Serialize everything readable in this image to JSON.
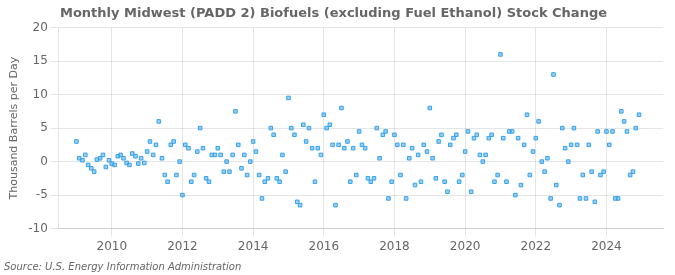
{
  "chart_data": {
    "type": "scatter",
    "title": "Monthly Midwest (PADD 2) Biofuels (excluding Fuel Ethanol) Stock Change",
    "ylabel": "Thousand Barrels per Day",
    "annotation": "Source: U.S. Energy Information Administration",
    "marker": "square",
    "grid": true,
    "xlim": [
      2008.5,
      2025.6
    ],
    "xticks": [
      2010,
      2012,
      2014,
      2016,
      2018,
      2020,
      2022,
      2024
    ],
    "ylim": [
      -10,
      20
    ],
    "yticks": [
      -10,
      -5,
      0,
      5,
      10,
      15,
      20
    ],
    "x": [
      2009,
      2009.08,
      2009.17,
      2009.25,
      2009.33,
      2009.42,
      2009.5,
      2009.58,
      2009.67,
      2009.75,
      2009.83,
      2009.92,
      2010,
      2010.08,
      2010.17,
      2010.25,
      2010.33,
      2010.42,
      2010.5,
      2010.58,
      2010.67,
      2010.75,
      2010.83,
      2010.92,
      2011,
      2011.08,
      2011.17,
      2011.25,
      2011.33,
      2011.42,
      2011.5,
      2011.58,
      2011.67,
      2011.75,
      2011.83,
      2011.92,
      2012,
      2012.08,
      2012.17,
      2012.25,
      2012.33,
      2012.42,
      2012.5,
      2012.58,
      2012.67,
      2012.75,
      2012.83,
      2012.92,
      2013,
      2013.08,
      2013.17,
      2013.25,
      2013.33,
      2013.42,
      2013.5,
      2013.58,
      2013.67,
      2013.75,
      2013.83,
      2013.92,
      2014,
      2014.08,
      2014.17,
      2014.25,
      2014.33,
      2014.42,
      2014.5,
      2014.58,
      2014.67,
      2014.75,
      2014.83,
      2014.92,
      2015,
      2015.08,
      2015.17,
      2015.25,
      2015.33,
      2015.42,
      2015.5,
      2015.58,
      2015.67,
      2015.75,
      2015.83,
      2015.92,
      2016,
      2016.08,
      2016.17,
      2016.25,
      2016.33,
      2016.42,
      2016.5,
      2016.58,
      2016.67,
      2016.75,
      2016.83,
      2016.92,
      2017,
      2017.08,
      2017.17,
      2017.25,
      2017.33,
      2017.42,
      2017.5,
      2017.58,
      2017.67,
      2017.75,
      2017.83,
      2017.92,
      2018,
      2018.08,
      2018.17,
      2018.25,
      2018.33,
      2018.42,
      2018.5,
      2018.58,
      2018.67,
      2018.75,
      2018.83,
      2018.92,
      2019,
      2019.08,
      2019.17,
      2019.25,
      2019.33,
      2019.42,
      2019.5,
      2019.58,
      2019.67,
      2019.75,
      2019.83,
      2019.92,
      2020,
      2020.08,
      2020.17,
      2020.25,
      2020.33,
      2020.42,
      2020.5,
      2020.58,
      2020.67,
      2020.75,
      2020.83,
      2020.92,
      2021,
      2021.08,
      2021.17,
      2021.25,
      2021.33,
      2021.42,
      2021.5,
      2021.58,
      2021.67,
      2021.75,
      2021.83,
      2021.92,
      2022,
      2022.08,
      2022.17,
      2022.25,
      2022.33,
      2022.42,
      2022.5,
      2022.58,
      2022.67,
      2022.75,
      2022.83,
      2022.92,
      2023,
      2023.08,
      2023.17,
      2023.25,
      2023.33,
      2023.42,
      2023.5,
      2023.58,
      2023.67,
      2023.75,
      2023.83,
      2023.92,
      2024,
      2024.08,
      2024.17,
      2024.25,
      2024.33,
      2024.42,
      2024.5,
      2024.58,
      2024.67,
      2024.75,
      2024.83,
      2024.92
    ],
    "values": [
      3.0,
      0.5,
      0.2,
      1.0,
      -0.5,
      -1.0,
      -1.5,
      0.3,
      0.5,
      1.0,
      -0.8,
      0.2,
      -0.3,
      -0.5,
      0.8,
      1.0,
      0.5,
      -0.2,
      -0.5,
      1.2,
      0.8,
      -0.3,
      0.5,
      -0.2,
      1.5,
      3.0,
      1.0,
      2.5,
      6.0,
      0.5,
      -2.0,
      -3.0,
      2.5,
      3.0,
      -2.0,
      0.0,
      -5.0,
      2.5,
      2.0,
      -3.0,
      -2.0,
      1.5,
      5.0,
      2.0,
      -2.5,
      -3.0,
      1.0,
      1.0,
      2.0,
      1.0,
      -1.5,
      0.0,
      -1.5,
      1.0,
      7.5,
      2.5,
      -1.0,
      1.0,
      -2.0,
      0.0,
      3.0,
      1.5,
      -2.0,
      -5.5,
      -3.0,
      -2.5,
      5.0,
      4.0,
      -2.5,
      -3.0,
      1.0,
      -1.5,
      9.5,
      5.0,
      4.0,
      -6.0,
      -6.5,
      5.5,
      3.0,
      5.0,
      2.0,
      -3.0,
      2.0,
      1.0,
      7.0,
      5.0,
      5.5,
      2.5,
      -6.5,
      2.5,
      8.0,
      2.0,
      3.0,
      -3.0,
      2.0,
      -2.0,
      4.5,
      2.5,
      2.0,
      -2.5,
      -3.0,
      -2.5,
      5.0,
      0.5,
      4.0,
      4.5,
      -5.5,
      -3.0,
      4.0,
      2.5,
      -2.0,
      2.5,
      -5.5,
      0.5,
      2.0,
      -3.5,
      1.0,
      -3.0,
      2.5,
      1.5,
      8.0,
      0.5,
      -2.5,
      3.0,
      4.0,
      -3.0,
      -4.5,
      2.5,
      3.5,
      4.0,
      -3.0,
      -2.0,
      1.5,
      4.5,
      -4.5,
      3.5,
      4.0,
      1.0,
      0.0,
      1.0,
      3.5,
      4.0,
      -3.0,
      -2.0,
      16.0,
      3.5,
      -3.0,
      4.5,
      4.5,
      -5.0,
      3.5,
      -3.5,
      2.5,
      7.0,
      -2.0,
      1.5,
      3.5,
      6.0,
      0.0,
      -1.5,
      0.5,
      -5.5,
      13.0,
      -3.5,
      -6.5,
      5.0,
      2.0,
      0.0,
      2.5,
      5.0,
      2.5,
      -5.5,
      -2.0,
      -5.5,
      2.5,
      -1.5,
      -6.0,
      4.5,
      -2.0,
      -1.5,
      4.5,
      2.5,
      4.5,
      -5.5,
      -5.5,
      7.5,
      6.0,
      4.5,
      -2.0,
      -1.5,
      5.0,
      7.0
    ]
  }
}
